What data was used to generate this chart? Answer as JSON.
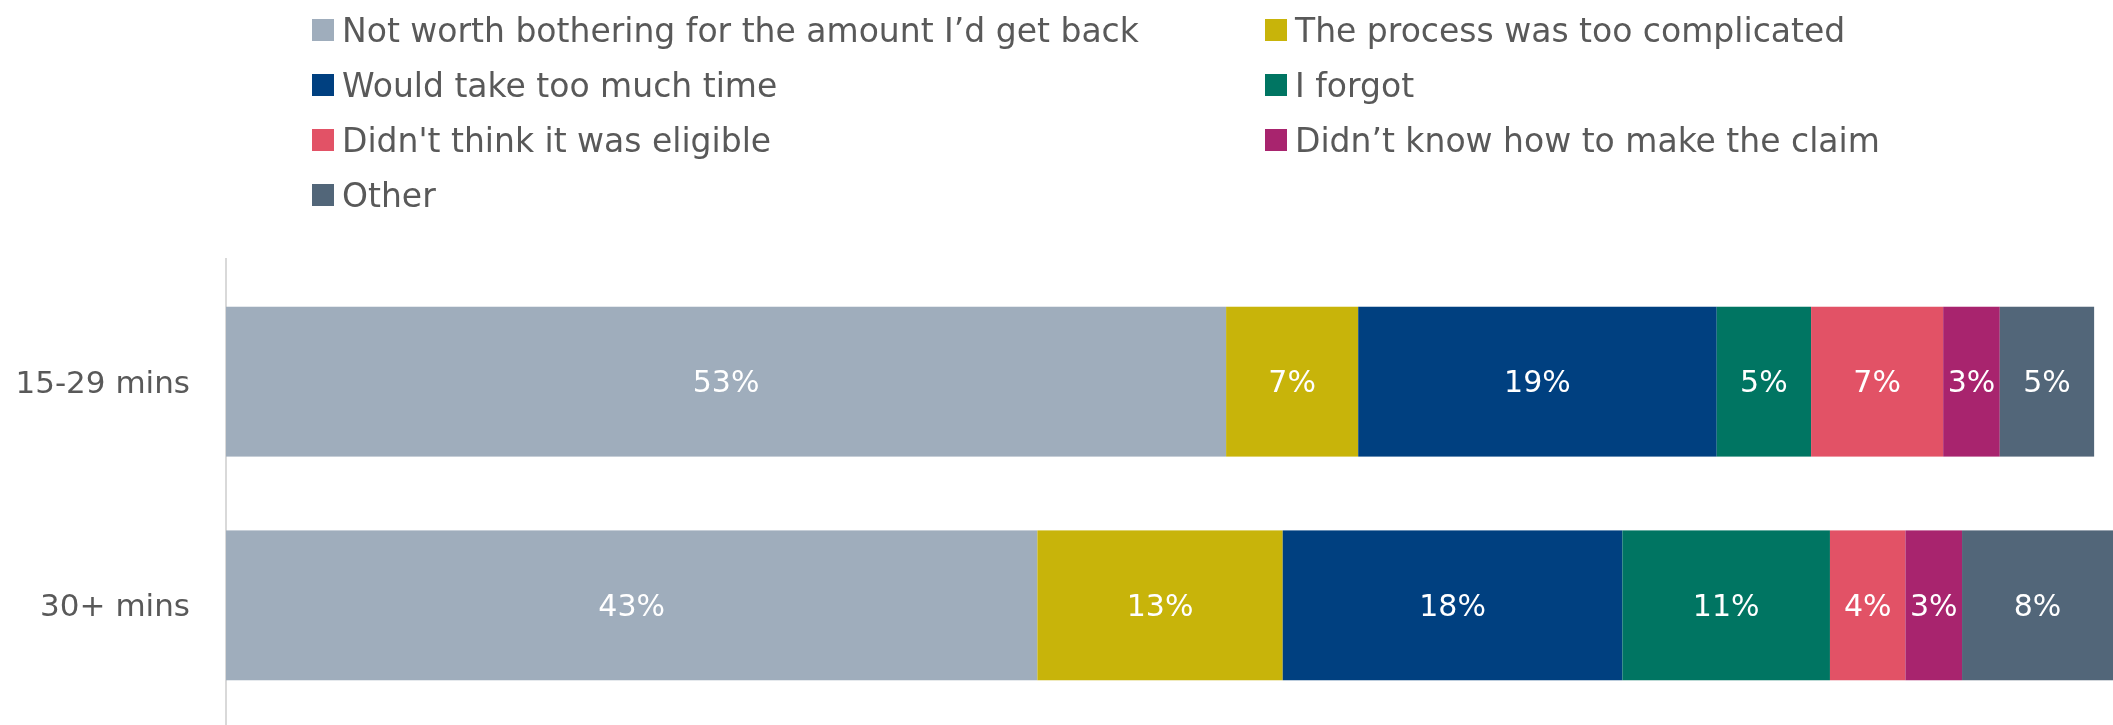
{
  "chart_data": {
    "type": "bar",
    "orientation": "horizontal",
    "stacked": true,
    "categories": [
      "15-29 mins",
      "30+ mins"
    ],
    "xlim": [
      0,
      100
    ],
    "legend": "top",
    "series": [
      {
        "name": "Not worth bothering for the amount I’d get back",
        "color": "#9fadbc",
        "values": [
          53,
          43
        ],
        "value_labels": [
          "53%",
          "43%"
        ]
      },
      {
        "name": "The process was too complicated",
        "color": "#c8b40a",
        "values": [
          7,
          13
        ],
        "value_labels": [
          "7%",
          "13%"
        ]
      },
      {
        "name": "Would take too much time",
        "color": "#004080",
        "values": [
          19,
          18
        ],
        "value_labels": [
          "19%",
          "18%"
        ]
      },
      {
        "name": "I forgot",
        "color": "#007562",
        "values": [
          5,
          11
        ],
        "value_labels": [
          "5%",
          "11%"
        ]
      },
      {
        "name": "Didn't think it was eligible",
        "color": "#e25266",
        "values": [
          7,
          4
        ],
        "value_labels": [
          "7%",
          "4%"
        ]
      },
      {
        "name": "Didn’t know how to make the claim",
        "color": "#a8246e",
        "values": [
          3,
          3
        ],
        "value_labels": [
          "3%",
          "3%"
        ]
      },
      {
        "name": "Other",
        "color": "#526679",
        "values": [
          5,
          8
        ],
        "value_labels": [
          "5%",
          "8%"
        ]
      }
    ]
  }
}
